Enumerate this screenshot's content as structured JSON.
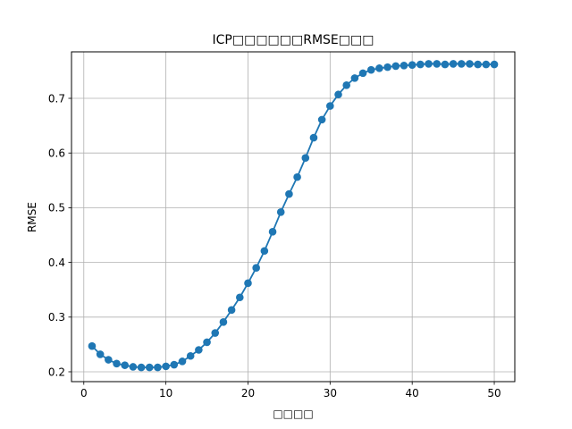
{
  "chart_data": {
    "type": "line",
    "title": "ICP□□□□□□RMSE□□□",
    "xlabel": "□□□□",
    "ylabel": "RMSE",
    "xlim": [
      -1.5,
      52.5
    ],
    "ylim": [
      0.182,
      0.785
    ],
    "xticks": [
      0,
      10,
      20,
      30,
      40,
      50
    ],
    "yticks": [
      0.2,
      0.3,
      0.4,
      0.5,
      0.6,
      0.7
    ],
    "grid": true,
    "marker": "circle",
    "series": [
      {
        "color": "#1f77b4",
        "x": [
          1,
          2,
          3,
          4,
          5,
          6,
          7,
          8,
          9,
          10,
          11,
          12,
          13,
          14,
          15,
          16,
          17,
          18,
          19,
          20,
          21,
          22,
          23,
          24,
          25,
          26,
          27,
          28,
          29,
          30,
          31,
          32,
          33,
          34,
          35,
          36,
          37,
          38,
          39,
          40,
          41,
          42,
          43,
          44,
          45,
          46,
          47,
          48,
          49,
          50
        ],
        "values": [
          0.247,
          0.232,
          0.222,
          0.215,
          0.212,
          0.209,
          0.208,
          0.208,
          0.208,
          0.21,
          0.213,
          0.219,
          0.229,
          0.24,
          0.254,
          0.271,
          0.291,
          0.313,
          0.336,
          0.362,
          0.39,
          0.421,
          0.456,
          0.492,
          0.525,
          0.556,
          0.591,
          0.628,
          0.661,
          0.686,
          0.707,
          0.724,
          0.737,
          0.746,
          0.752,
          0.755,
          0.757,
          0.759,
          0.76,
          0.761,
          0.762,
          0.763,
          0.763,
          0.762,
          0.763,
          0.763,
          0.763,
          0.762,
          0.762,
          0.762
        ]
      }
    ]
  }
}
